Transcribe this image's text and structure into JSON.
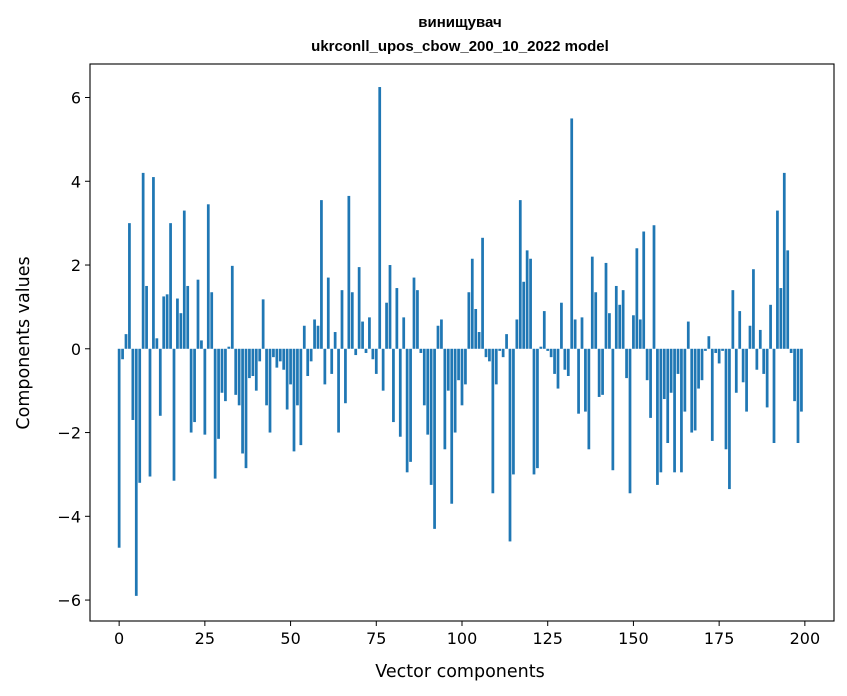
{
  "chart_data": {
    "type": "bar",
    "title": "винищувач",
    "subtitle": "ukrconll_upos_cbow_200_10_2022 model",
    "xlabel": "Vector components",
    "ylabel": "Components values",
    "xlim": [
      -8.5,
      208.5
    ],
    "ylim": [
      -6.5,
      6.8
    ],
    "xticks": [
      0,
      25,
      50,
      75,
      100,
      125,
      150,
      175,
      200
    ],
    "yticks": [
      -6,
      -4,
      -2,
      0,
      2,
      4,
      6
    ],
    "bar_color": "#1f77b4",
    "grid": false,
    "legend": "none",
    "x": [
      0,
      1,
      2,
      3,
      4,
      5,
      6,
      7,
      8,
      9,
      10,
      11,
      12,
      13,
      14,
      15,
      16,
      17,
      18,
      19,
      20,
      21,
      22,
      23,
      24,
      25,
      26,
      27,
      28,
      29,
      30,
      31,
      32,
      33,
      34,
      35,
      36,
      37,
      38,
      39,
      40,
      41,
      42,
      43,
      44,
      45,
      46,
      47,
      48,
      49,
      50,
      51,
      52,
      53,
      54,
      55,
      56,
      57,
      58,
      59,
      60,
      61,
      62,
      63,
      64,
      65,
      66,
      67,
      68,
      69,
      70,
      71,
      72,
      73,
      74,
      75,
      76,
      77,
      78,
      79,
      80,
      81,
      82,
      83,
      84,
      85,
      86,
      87,
      88,
      89,
      90,
      91,
      92,
      93,
      94,
      95,
      96,
      97,
      98,
      99,
      100,
      101,
      102,
      103,
      104,
      105,
      106,
      107,
      108,
      109,
      110,
      111,
      112,
      113,
      114,
      115,
      116,
      117,
      118,
      119,
      120,
      121,
      122,
      123,
      124,
      125,
      126,
      127,
      128,
      129,
      130,
      131,
      132,
      133,
      134,
      135,
      136,
      137,
      138,
      139,
      140,
      141,
      142,
      143,
      144,
      145,
      146,
      147,
      148,
      149,
      150,
      151,
      152,
      153,
      154,
      155,
      156,
      157,
      158,
      159,
      160,
      161,
      162,
      163,
      164,
      165,
      166,
      167,
      168,
      169,
      170,
      171,
      172,
      173,
      174,
      175,
      176,
      177,
      178,
      179,
      180,
      181,
      182,
      183,
      184,
      185,
      186,
      187,
      188,
      189,
      190,
      191,
      192,
      193,
      194,
      195,
      196,
      197,
      198,
      199
    ],
    "values": [
      -4.75,
      -0.25,
      0.35,
      3.0,
      -1.7,
      -5.9,
      -3.2,
      4.2,
      1.5,
      -3.05,
      4.1,
      0.25,
      -1.6,
      1.25,
      1.3,
      3.0,
      -3.15,
      1.2,
      0.85,
      3.3,
      1.5,
      -2.0,
      -1.75,
      1.65,
      0.2,
      -2.05,
      3.45,
      1.35,
      -3.1,
      -2.15,
      -1.05,
      -1.25,
      0.05,
      1.98,
      -1.1,
      -1.35,
      -2.5,
      -2.85,
      -0.7,
      -0.65,
      -1.0,
      -0.3,
      1.18,
      -1.35,
      -2.0,
      -0.2,
      -0.45,
      -0.3,
      -0.5,
      -1.45,
      -0.85,
      -2.45,
      -1.35,
      -2.3,
      0.55,
      -0.65,
      -0.3,
      0.7,
      0.55,
      3.55,
      -0.85,
      1.7,
      -0.6,
      0.4,
      -2.0,
      1.4,
      -1.3,
      3.65,
      1.35,
      -0.15,
      1.95,
      0.65,
      -0.1,
      0.75,
      -0.25,
      -0.6,
      6.25,
      -1.0,
      1.1,
      2.0,
      -1.75,
      1.45,
      -2.1,
      0.75,
      -2.95,
      -2.7,
      1.7,
      1.4,
      -0.1,
      -1.35,
      -2.05,
      -3.25,
      -4.3,
      0.55,
      0.7,
      -2.4,
      -1.0,
      -3.7,
      -2.0,
      -0.75,
      -1.35,
      -0.85,
      1.35,
      2.15,
      0.95,
      0.4,
      2.65,
      -0.2,
      -0.3,
      -3.45,
      -0.85,
      -0.05,
      -0.2,
      0.35,
      -4.6,
      -3.0,
      0.7,
      3.55,
      1.6,
      2.35,
      2.15,
      -3.0,
      -2.85,
      0.05,
      0.9,
      -0.05,
      -0.2,
      -0.6,
      -0.95,
      1.1,
      -0.5,
      -0.65,
      5.5,
      0.7,
      -1.55,
      0.75,
      -1.5,
      -2.4,
      2.2,
      1.35,
      -1.15,
      -1.1,
      2.05,
      0.85,
      -2.9,
      1.5,
      1.05,
      1.4,
      -0.7,
      -3.45,
      0.8,
      2.4,
      0.7,
      2.8,
      -0.75,
      -1.65,
      2.95,
      -3.25,
      -2.95,
      -1.2,
      -2.25,
      -1.05,
      -2.95,
      -0.6,
      -2.95,
      -1.5,
      0.65,
      -2.0,
      -1.95,
      -0.95,
      -0.75,
      -0.05,
      0.3,
      -2.2,
      -0.1,
      -0.35,
      -0.05,
      -2.4,
      -3.35,
      1.4,
      -1.05,
      0.9,
      -0.8,
      -1.5,
      0.55,
      1.9,
      -0.5,
      0.45,
      -0.6,
      -1.4,
      1.05,
      -2.25,
      3.3,
      1.45,
      4.2,
      2.35,
      -0.1,
      -1.25,
      -2.25,
      -1.5
    ]
  }
}
